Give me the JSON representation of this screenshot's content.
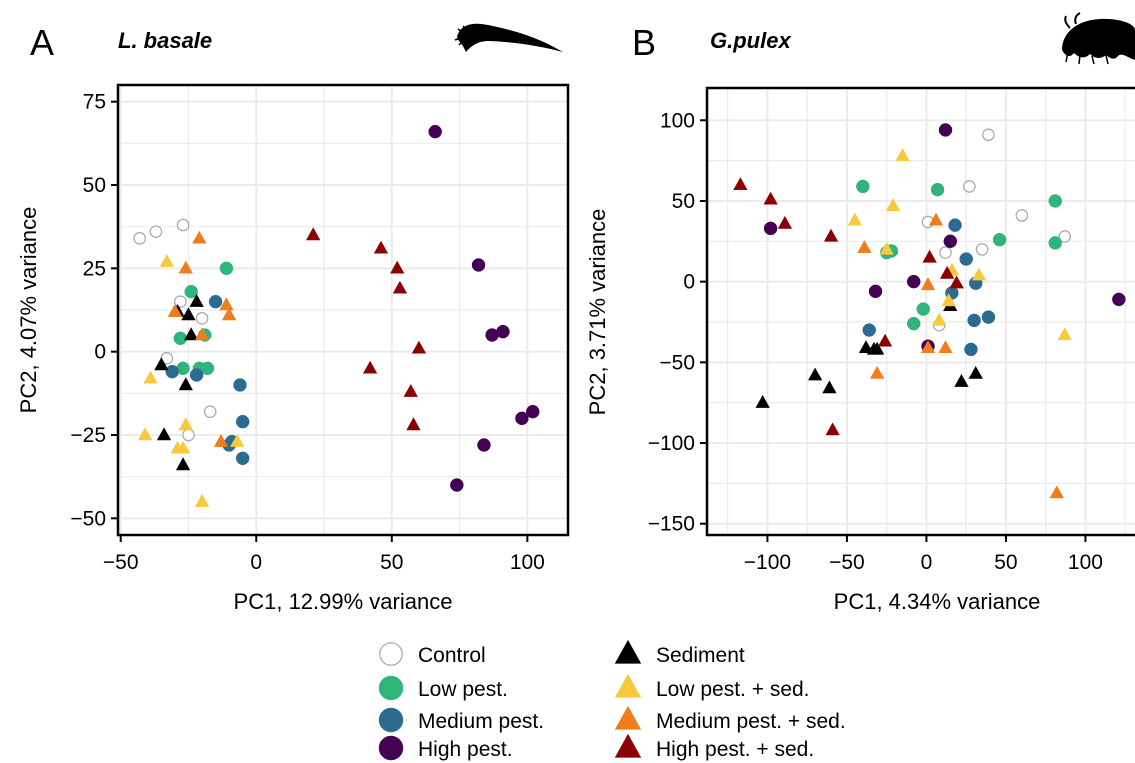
{
  "chart_data": [
    {
      "type": "scatter",
      "panel_label": "A",
      "title": "L. basale",
      "xlabel": "PC1, 12.99% variance",
      "ylabel": "PC2, 4.07% variance",
      "xlim": [
        -51,
        115
      ],
      "ylim": [
        -55,
        80
      ],
      "xticks": [
        -50,
        0,
        50,
        100
      ],
      "yticks": [
        -50,
        -25,
        0,
        25,
        50,
        75
      ],
      "xtick_labels": [
        "−50",
        "0",
        "50",
        "100"
      ],
      "ytick_labels": [
        "−50",
        "−25",
        "0",
        "25",
        "50",
        "75"
      ],
      "grid": true,
      "series": [
        {
          "name": "Control",
          "points": [
            [
              -43,
              34
            ],
            [
              -37,
              36
            ],
            [
              -27,
              38
            ],
            [
              -28,
              15
            ],
            [
              -20,
              10
            ],
            [
              -33,
              -2
            ],
            [
              -25,
              -25
            ],
            [
              -17,
              -18
            ]
          ]
        },
        {
          "name": "Low pest.",
          "points": [
            [
              -24,
              18
            ],
            [
              -11,
              25
            ],
            [
              -28,
              4
            ],
            [
              -27,
              -5
            ],
            [
              -19,
              5
            ],
            [
              -18,
              -5
            ],
            [
              -21,
              -5
            ]
          ]
        },
        {
          "name": "Medium  pest.",
          "points": [
            [
              -15,
              15
            ],
            [
              -31,
              -6
            ],
            [
              -22,
              -7
            ],
            [
              -6,
              -10
            ],
            [
              -5,
              -21
            ],
            [
              -9,
              -27
            ],
            [
              -10,
              -28
            ],
            [
              -5,
              -32
            ]
          ]
        },
        {
          "name": "High pest.",
          "points": [
            [
              66,
              66
            ],
            [
              82,
              26
            ],
            [
              87,
              5
            ],
            [
              91,
              6
            ],
            [
              84,
              -28
            ],
            [
              98,
              -20
            ],
            [
              102,
              -18
            ],
            [
              74,
              -40
            ]
          ]
        },
        {
          "name": "Sediment",
          "points": [
            [
              -29,
              12
            ],
            [
              -25,
              11
            ],
            [
              -22,
              15
            ],
            [
              -24,
              5
            ],
            [
              -35,
              -4
            ],
            [
              -26,
              -10
            ],
            [
              -34,
              -25
            ],
            [
              -27,
              -34
            ]
          ]
        },
        {
          "name": "Low pest. + sed.",
          "points": [
            [
              -33,
              27
            ],
            [
              -30,
              12
            ],
            [
              -39,
              -8
            ],
            [
              -41,
              -25
            ],
            [
              -26,
              -22
            ],
            [
              -29,
              -29
            ],
            [
              -27,
              -29
            ],
            [
              -20,
              -45
            ],
            [
              -7,
              -27
            ]
          ]
        },
        {
          "name": "Medium pest. + sed.",
          "points": [
            [
              -21,
              34
            ],
            [
              -26,
              25
            ],
            [
              -11,
              14
            ],
            [
              -10,
              11
            ],
            [
              -20,
              5
            ],
            [
              -30,
              12
            ],
            [
              -13,
              -27
            ]
          ]
        },
        {
          "name": "High pest. + sed.",
          "points": [
            [
              21,
              35
            ],
            [
              46,
              31
            ],
            [
              52,
              25
            ],
            [
              53,
              19
            ],
            [
              60,
              1
            ],
            [
              42,
              -5
            ],
            [
              57,
              -12
            ],
            [
              58,
              -22
            ]
          ]
        }
      ]
    },
    {
      "type": "scatter",
      "panel_label": "B",
      "title": "G.pulex",
      "xlabel": "PC1, 4.34% variance",
      "ylabel": "PC2, 3.71% variance",
      "xlim": [
        -138,
        145
      ],
      "ylim": [
        -157,
        120
      ],
      "xticks": [
        -100,
        -50,
        0,
        50,
        100
      ],
      "yticks": [
        -150,
        -100,
        -50,
        0,
        50,
        100
      ],
      "xtick_labels": [
        "−100",
        "−50",
        "0",
        "50",
        "100"
      ],
      "ytick_labels": [
        "−150",
        "−100",
        "−50",
        "0",
        "50",
        "100"
      ],
      "grid": true,
      "series": [
        {
          "name": "Control",
          "points": [
            [
              39,
              91
            ],
            [
              27,
              59
            ],
            [
              60,
              41
            ],
            [
              87,
              28
            ],
            [
              1,
              37
            ],
            [
              12,
              18
            ],
            [
              35,
              20
            ],
            [
              8,
              -27
            ]
          ]
        },
        {
          "name": "Low pest.",
          "points": [
            [
              -40,
              59
            ],
            [
              -25,
              18
            ],
            [
              -22,
              19
            ],
            [
              7,
              57
            ],
            [
              46,
              26
            ],
            [
              81,
              50
            ],
            [
              81,
              24
            ],
            [
              -2,
              -17
            ],
            [
              -8,
              -26
            ]
          ]
        },
        {
          "name": "Medium  pest.",
          "points": [
            [
              18,
              35
            ],
            [
              25,
              14
            ],
            [
              31,
              -1
            ],
            [
              16,
              -7
            ],
            [
              30,
              -24
            ],
            [
              39,
              -22
            ],
            [
              -36,
              -30
            ],
            [
              28,
              -42
            ]
          ]
        },
        {
          "name": "High pest.",
          "points": [
            [
              12,
              94
            ],
            [
              -98,
              33
            ],
            [
              15,
              25
            ],
            [
              -32,
              -6
            ],
            [
              -8,
              0
            ],
            [
              1,
              -40
            ],
            [
              121,
              -11
            ]
          ]
        },
        {
          "name": "Sediment",
          "points": [
            [
              -38,
              -41
            ],
            [
              -33,
              -42
            ],
            [
              -31,
              -42
            ],
            [
              -70,
              -58
            ],
            [
              -61,
              -66
            ],
            [
              -103,
              -75
            ],
            [
              15,
              -15
            ],
            [
              31,
              -57
            ],
            [
              22,
              -62
            ]
          ]
        },
        {
          "name": "Low pest. + sed.",
          "points": [
            [
              -15,
              78
            ],
            [
              -21,
              47
            ],
            [
              -45,
              38
            ],
            [
              -25,
              20
            ],
            [
              8,
              -24
            ],
            [
              14,
              -12
            ],
            [
              16,
              7
            ],
            [
              33,
              4
            ],
            [
              87,
              -33
            ]
          ]
        },
        {
          "name": "Medium pest. + sed.",
          "points": [
            [
              -39,
              21
            ],
            [
              6,
              38
            ],
            [
              1,
              -2
            ],
            [
              19,
              -1
            ],
            [
              1,
              -41
            ],
            [
              12,
              -41
            ],
            [
              -31,
              -57
            ],
            [
              82,
              -131
            ]
          ]
        },
        {
          "name": "High pest. + sed.",
          "points": [
            [
              -117,
              60
            ],
            [
              -98,
              51
            ],
            [
              -89,
              36
            ],
            [
              -60,
              28
            ],
            [
              -26,
              -37
            ],
            [
              13,
              5
            ],
            [
              2,
              15
            ],
            [
              19,
              -1
            ],
            [
              -59,
              -92
            ]
          ]
        }
      ]
    }
  ],
  "legend": {
    "col1": [
      {
        "label": "Control",
        "shape": "circle",
        "fill": "#ffffff",
        "stroke": "#a6a6a6"
      },
      {
        "label": "Low pest.",
        "shape": "circle",
        "fill": "#2fb47c",
        "stroke": "#2fb47c"
      },
      {
        "label": "Medium  pest.",
        "shape": "circle",
        "fill": "#2c6a8f",
        "stroke": "#2c6a8f"
      },
      {
        "label": "High pest.",
        "shape": "circle",
        "fill": "#440154",
        "stroke": "#440154"
      }
    ],
    "col2": [
      {
        "label": "Sediment",
        "shape": "triangle",
        "fill": "#000000",
        "stroke": "#000000"
      },
      {
        "label": "Low pest. + sed.",
        "shape": "triangle",
        "fill": "#f9c93c",
        "stroke": "#f9c93c"
      },
      {
        "label": "Medium pest. + sed.",
        "shape": "triangle",
        "fill": "#f07d1c",
        "stroke": "#f07d1c"
      },
      {
        "label": "High pest. + sed.",
        "shape": "triangle",
        "fill": "#8b0000",
        "stroke": "#8b0000"
      }
    ]
  },
  "colors": {
    "control_outline": "#a6a6a6",
    "low_pest": "#2fb47c",
    "medium_pest": "#2c6a8f",
    "high_pest": "#440154",
    "sediment": "#000000",
    "low_pest_sed": "#f9c93c",
    "medium_pest_sed": "#f07d1c",
    "high_pest_sed": "#8b0000",
    "grid": "#ebebeb"
  },
  "icons": [
    "larva-silhouette-icon",
    "amphipod-silhouette-icon"
  ]
}
